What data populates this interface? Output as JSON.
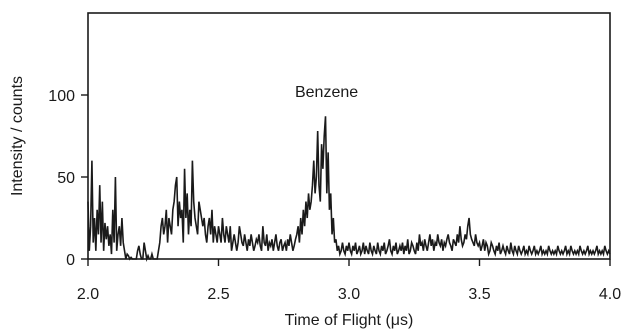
{
  "chart_data": {
    "type": "line",
    "title": "",
    "xlabel": "Time of Flight (μs)",
    "ylabel": "Intensity / counts",
    "xlim": [
      2.0,
      4.0
    ],
    "ylim": [
      0,
      150
    ],
    "x_ticks": [
      2.0,
      2.5,
      3.0,
      3.5,
      4.0
    ],
    "x_tick_labels": [
      "2.0",
      "2.5",
      "3.0",
      "3.5",
      "4.0"
    ],
    "y_ticks": [
      0,
      50,
      100
    ],
    "y_tick_labels": [
      "0",
      "50",
      "100"
    ],
    "grid": false,
    "annotations": [
      {
        "text": "Benzene",
        "x": 2.96,
        "y": 100
      }
    ],
    "series": [
      {
        "color": "#1a1a1a",
        "x_start": 2.0,
        "x_step": 0.005,
        "values": [
          35,
          5,
          20,
          60,
          10,
          25,
          5,
          30,
          15,
          45,
          10,
          35,
          5,
          22,
          12,
          20,
          8,
          15,
          3,
          30,
          10,
          50,
          5,
          15,
          20,
          8,
          25,
          10,
          5,
          0,
          3,
          2,
          0,
          1,
          0,
          0,
          0,
          0,
          5,
          8,
          3,
          0,
          0,
          10,
          5,
          0,
          2,
          0,
          0,
          3,
          0,
          0,
          0,
          0,
          5,
          10,
          20,
          25,
          15,
          20,
          30,
          10,
          25,
          20,
          15,
          30,
          35,
          45,
          50,
          20,
          35,
          25,
          30,
          10,
          55,
          25,
          40,
          15,
          30,
          20,
          60,
          35,
          25,
          20,
          15,
          35,
          30,
          25,
          20,
          25,
          15,
          10,
          20,
          25,
          15,
          30,
          10,
          20,
          15,
          10,
          20,
          15,
          10,
          25,
          15,
          10,
          20,
          15,
          10,
          20,
          5,
          10,
          15,
          10,
          5,
          10,
          20,
          15,
          10,
          8,
          15,
          10,
          5,
          12,
          8,
          15,
          10,
          5,
          8,
          12,
          10,
          15,
          8,
          5,
          20,
          10,
          8,
          15,
          5,
          10,
          8,
          12,
          5,
          10,
          15,
          8,
          5,
          10,
          12,
          5,
          8,
          10,
          5,
          12,
          8,
          15,
          10,
          5,
          8,
          12,
          15,
          20,
          10,
          25,
          15,
          30,
          20,
          35,
          25,
          40,
          30,
          35,
          45,
          60,
          40,
          50,
          78,
          45,
          35,
          70,
          55,
          75,
          87,
          40,
          65,
          30,
          40,
          15,
          25,
          10,
          12,
          5,
          8,
          3,
          5,
          10,
          5,
          3,
          8,
          5,
          10,
          5,
          3,
          8,
          5,
          10,
          3,
          5,
          8,
          3,
          5,
          10,
          3,
          8,
          5,
          3,
          10,
          5,
          3,
          8,
          5,
          3,
          10,
          5,
          3,
          8,
          5,
          10,
          3,
          5,
          8,
          12,
          5,
          3,
          8,
          5,
          10,
          3,
          5,
          8,
          5,
          10,
          3,
          8,
          5,
          12,
          3,
          5,
          10,
          8,
          5,
          3,
          10,
          5,
          15,
          8,
          10,
          5,
          12,
          8,
          5,
          10,
          15,
          8,
          12,
          5,
          10,
          8,
          15,
          10,
          8,
          12,
          5,
          10,
          8,
          12,
          15,
          10,
          8,
          5,
          12,
          10,
          8,
          15,
          10,
          20,
          12,
          8,
          10,
          15,
          12,
          20,
          25,
          15,
          12,
          10,
          8,
          15,
          10,
          8,
          10,
          5,
          8,
          12,
          5,
          10,
          8,
          3,
          5,
          10,
          8,
          5,
          3,
          8,
          5,
          10,
          3,
          5,
          8,
          5,
          3,
          8,
          5,
          3,
          10,
          5,
          3,
          8,
          5,
          3,
          8,
          5,
          3,
          5,
          8,
          3,
          5,
          3,
          8,
          5,
          3,
          5,
          8,
          3,
          5,
          3,
          5,
          8,
          3,
          5,
          3,
          5,
          3,
          8,
          5,
          3,
          5,
          3,
          5,
          3,
          8,
          5,
          3,
          5,
          3,
          5,
          8,
          3,
          5,
          3,
          8,
          5,
          3,
          5,
          3,
          5,
          3,
          8,
          5,
          3,
          5,
          3,
          5,
          8,
          3,
          5,
          3,
          5,
          3,
          5,
          8,
          3,
          5,
          3,
          5,
          3,
          8,
          5,
          3,
          5,
          3
        ]
      }
    ]
  }
}
